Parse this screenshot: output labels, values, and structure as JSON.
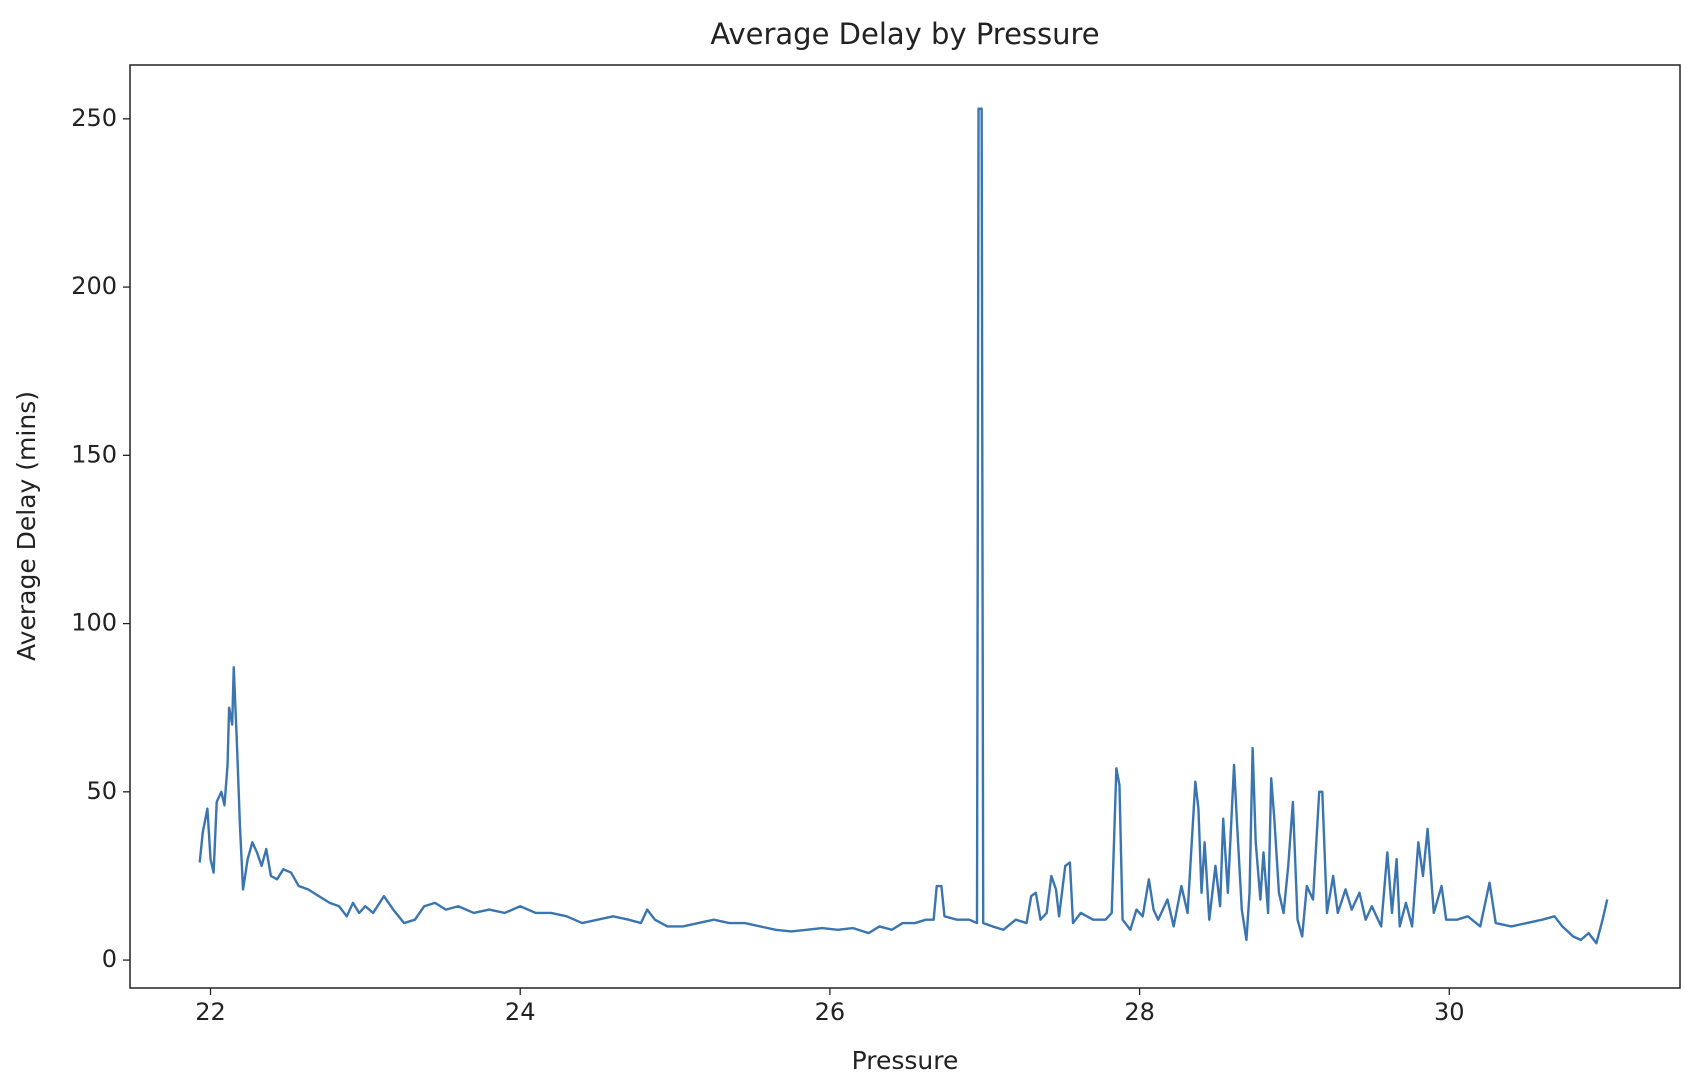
{
  "chart_data": {
    "type": "line",
    "title": "Average Delay by Pressure",
    "x_label": "Pressure",
    "y_label": "Average Delay (mins)",
    "x": [
      21.93,
      21.95,
      21.98,
      22.0,
      22.02,
      22.04,
      22.07,
      22.09,
      22.11,
      22.12,
      22.14,
      22.15,
      22.17,
      22.19,
      22.21,
      22.24,
      22.27,
      22.3,
      22.33,
      22.36,
      22.39,
      22.43,
      22.47,
      22.52,
      22.57,
      22.63,
      22.7,
      22.77,
      22.83,
      22.88,
      22.92,
      22.96,
      23.0,
      23.05,
      23.12,
      23.18,
      23.25,
      23.32,
      23.38,
      23.45,
      23.52,
      23.6,
      23.7,
      23.8,
      23.9,
      24.0,
      24.1,
      24.2,
      24.3,
      24.4,
      24.5,
      24.6,
      24.7,
      24.78,
      24.82,
      24.87,
      24.95,
      25.05,
      25.15,
      25.25,
      25.35,
      25.45,
      25.55,
      25.65,
      25.75,
      25.85,
      25.95,
      26.05,
      26.15,
      26.25,
      26.32,
      26.4,
      26.47,
      26.55,
      26.62,
      26.67,
      26.69,
      26.72,
      26.74,
      26.82,
      26.9,
      26.95,
      26.96,
      26.98,
      26.99,
      27.05,
      27.12,
      27.2,
      27.27,
      27.3,
      27.33,
      27.36,
      27.4,
      27.43,
      27.46,
      27.48,
      27.52,
      27.55,
      27.57,
      27.62,
      27.7,
      27.78,
      27.82,
      27.85,
      27.87,
      27.89,
      27.94,
      27.98,
      28.02,
      28.06,
      28.09,
      28.12,
      28.18,
      28.22,
      28.27,
      28.31,
      28.36,
      28.38,
      28.4,
      28.42,
      28.45,
      28.49,
      28.52,
      28.54,
      28.57,
      28.61,
      28.63,
      28.66,
      28.69,
      28.71,
      28.73,
      28.75,
      28.78,
      28.8,
      28.83,
      28.85,
      28.87,
      28.9,
      28.93,
      28.96,
      28.99,
      29.02,
      29.05,
      29.08,
      29.12,
      29.16,
      29.18,
      29.21,
      29.25,
      29.28,
      29.33,
      29.37,
      29.42,
      29.46,
      29.5,
      29.56,
      29.6,
      29.63,
      29.66,
      29.68,
      29.72,
      29.76,
      29.8,
      29.83,
      29.86,
      29.9,
      29.95,
      29.98,
      30.05,
      30.12,
      30.2,
      30.26,
      30.3,
      30.4,
      30.5,
      30.6,
      30.68,
      30.73,
      30.8,
      30.85,
      30.9,
      30.95,
      30.99,
      31.02
    ],
    "series": [
      {
        "name": "Average Delay",
        "color": "#3a75b0",
        "values": [
          29,
          38,
          45,
          30,
          26,
          47,
          50,
          46,
          58,
          75,
          70,
          87,
          65,
          40,
          21,
          30,
          35,
          32,
          28,
          33,
          25,
          24,
          27,
          26,
          22,
          21,
          19,
          17,
          16,
          13,
          17,
          14,
          16,
          14,
          19,
          15,
          11,
          12,
          16,
          17,
          15,
          16,
          14,
          15,
          14,
          16,
          14,
          14,
          13,
          11,
          12,
          13,
          12,
          11,
          15,
          12,
          10,
          10,
          11,
          12,
          11,
          11,
          10,
          9,
          8.5,
          9,
          9.5,
          9,
          9.5,
          8,
          10,
          9,
          11,
          11,
          12,
          12,
          22,
          22,
          13,
          12,
          12,
          11,
          253,
          253,
          11,
          10,
          9,
          12,
          11,
          19,
          20,
          12,
          14,
          25,
          21,
          13,
          28,
          29,
          11,
          14,
          12,
          12,
          14,
          57,
          52,
          12,
          9,
          15,
          13,
          24,
          15,
          12,
          18,
          10,
          22,
          14,
          53,
          45,
          20,
          35,
          12,
          28,
          16,
          42,
          20,
          58,
          40,
          15,
          6,
          20,
          63,
          35,
          18,
          32,
          14,
          54,
          42,
          20,
          14,
          28,
          47,
          12,
          7,
          22,
          18,
          50,
          50,
          14,
          25,
          14,
          21,
          15,
          20,
          12,
          16,
          10,
          32,
          14,
          30,
          10,
          17,
          10,
          35,
          25,
          39,
          14,
          22,
          12,
          12,
          13,
          10,
          23,
          11,
          10,
          11,
          12,
          13,
          10,
          7,
          6,
          8,
          5,
          12,
          18
        ]
      }
    ],
    "xlim": [
      21.48,
      31.49
    ],
    "ylim": [
      -8.3,
      266
    ],
    "xticks": [
      22,
      24,
      26,
      28,
      30
    ],
    "yticks": [
      0,
      50,
      100,
      150,
      200,
      250
    ],
    "grid": false
  }
}
